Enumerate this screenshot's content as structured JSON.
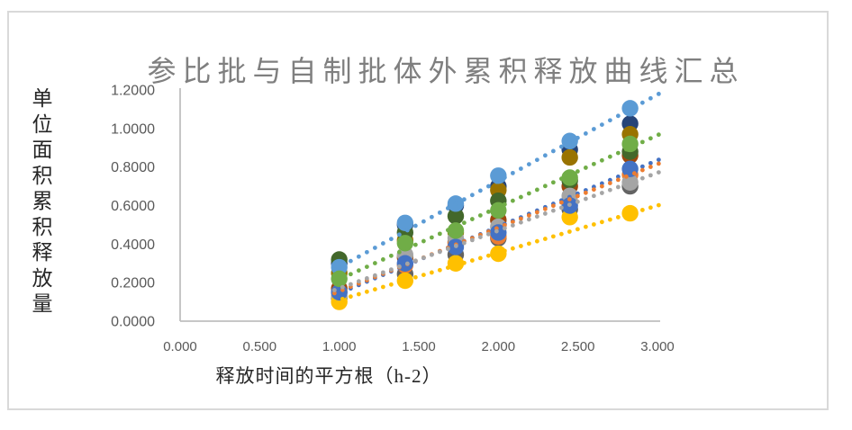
{
  "chart": {
    "title": "参比批与自制批体外累积释放曲线汇总",
    "xlabel": "释放时间的平方根（h-2）",
    "ylabel": "单位面积累积释放量"
  },
  "colors": {
    "background": "#FFFFFF",
    "chart_border": "#D9D9D9",
    "axis_line": "#BFBFBF",
    "tick_label": "#595959",
    "title_text": "#7F7F7F",
    "axis_title_text": "#262626"
  },
  "chart_data": {
    "type": "scatter",
    "title": "参比批与自制批体外累积释放曲线汇总",
    "xlabel": "释放时间的平方根（h-2）",
    "ylabel": "单位面积累积释放量",
    "legend": "none",
    "grid": false,
    "xlim": [
      0,
      3.0
    ],
    "ylim": [
      0,
      1.2
    ],
    "x_ticks": [
      "0.000",
      "0.500",
      "1.000",
      "1.500",
      "2.000",
      "2.500",
      "3.000"
    ],
    "y_ticks": [
      "0.0000",
      "0.2000",
      "0.4000",
      "0.6000",
      "0.8000",
      "1.0000",
      "1.2000"
    ],
    "x": [
      1.0,
      1.414,
      1.732,
      2.0,
      2.449,
      2.828
    ],
    "series": [
      {
        "name": "blue",
        "color": "#4472C4",
        "values": [
          0.15,
          0.3,
          0.385,
          0.46,
          0.6,
          0.79
        ],
        "trendline": {
          "style": "dotted",
          "slope": 0.345,
          "intercept": -0.2
        }
      },
      {
        "name": "orange",
        "color": "#ED7D31",
        "values": [
          0.15,
          0.29,
          0.4,
          0.44,
          0.62,
          0.76
        ],
        "trendline": {
          "style": "dotted",
          "slope": 0.33,
          "intercept": -0.175
        }
      },
      {
        "name": "gray",
        "color": "#A5A5A5",
        "values": [
          0.13,
          0.345,
          0.43,
          0.49,
          0.65,
          0.72
        ],
        "trendline": {
          "style": "dotted",
          "slope": 0.3,
          "intercept": -0.13
        }
      },
      {
        "name": "yellow",
        "color": "#FFC000",
        "values": [
          0.1,
          0.21,
          0.3,
          0.35,
          0.54,
          0.56
        ],
        "trendline": {
          "style": "dotted",
          "slope": 0.245,
          "intercept": -0.135
        }
      },
      {
        "name": "light-blue",
        "color": "#5B9BD5",
        "values": [
          0.28,
          0.51,
          0.61,
          0.755,
          0.935,
          1.105
        ],
        "trendline": {
          "style": "dotted",
          "slope": 0.448,
          "intercept": -0.168
        }
      },
      {
        "name": "green",
        "color": "#70AD47",
        "values": [
          0.22,
          0.405,
          0.47,
          0.575,
          0.745,
          0.92
        ],
        "trendline": {
          "style": "dotted",
          "slope": 0.374,
          "intercept": -0.157
        }
      },
      {
        "name": "dark-blue",
        "color": "#264478",
        "values": [
          0.3,
          0.5,
          0.6,
          0.7,
          0.89,
          1.025
        ],
        "trendline": null
      },
      {
        "name": "dark-orange",
        "color": "#9E480E",
        "values": [
          0.17,
          0.33,
          0.41,
          0.525,
          0.7,
          0.86
        ],
        "trendline": null
      },
      {
        "name": "dark-gray",
        "color": "#636363",
        "values": [
          0.12,
          0.245,
          0.345,
          0.43,
          0.58,
          0.7
        ],
        "trendline": null
      },
      {
        "name": "dark-yellow",
        "color": "#997300",
        "values": [
          0.25,
          0.42,
          0.46,
          0.68,
          0.85,
          0.97
        ],
        "trendline": null
      },
      {
        "name": "dark-green",
        "color": "#43682B",
        "values": [
          0.32,
          0.46,
          0.545,
          0.625,
          0.73,
          0.88
        ],
        "trendline": null
      }
    ],
    "draw_order": [
      "dark-blue",
      "dark-orange",
      "dark-gray",
      "dark-yellow",
      "dark-green",
      "orange",
      "gray",
      "yellow",
      "blue",
      "light-blue",
      "green"
    ],
    "trend_x_range": [
      0.97,
      3.03
    ]
  }
}
